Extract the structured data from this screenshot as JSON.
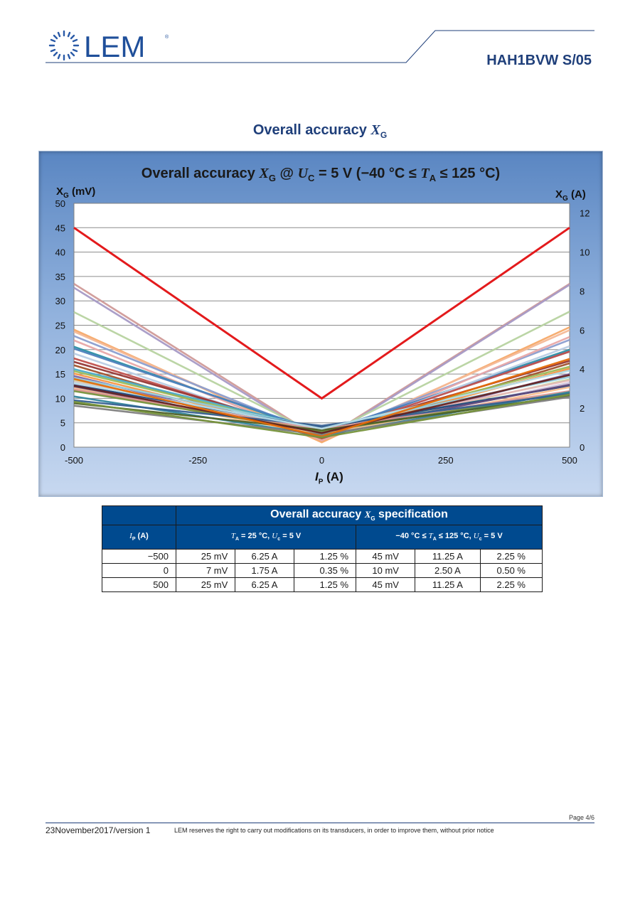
{
  "header": {
    "brand": "LEM",
    "doc_code": "HAH1BVW S/05"
  },
  "section_title": {
    "main": "Overall accuracy ",
    "var": "X",
    "sub": "G"
  },
  "chart_title": {
    "p1": "Overall accuracy ",
    "v1": "X",
    "s1": "G",
    "p2": " @ ",
    "v2": "U",
    "s2": "C",
    "p3": " = 5 V (−40 °C ≤ ",
    "v3": "T",
    "s3": "A",
    "p4": " ≤ 125 °C)"
  },
  "axes": {
    "y_left_label": {
      "main": "X",
      "sub": "G",
      "rest": " (mV)"
    },
    "y_right_label": {
      "main": "X",
      "sub": "G",
      "rest": " (A)"
    },
    "x_label": {
      "main": "I",
      "sub": "P",
      "rest": " (A)"
    }
  },
  "chart_data": {
    "type": "line",
    "xlabel": "IP (A)",
    "ylabel": "XG (mV)",
    "y2label": "XG (A)",
    "xlim": [
      -500,
      500
    ],
    "ylim": [
      0,
      50
    ],
    "y2lim": [
      0,
      12.5
    ],
    "x_ticks": [
      -500,
      -250,
      0,
      250,
      500
    ],
    "y_ticks": [
      0,
      5,
      10,
      15,
      20,
      25,
      30,
      35,
      40,
      45,
      50
    ],
    "y2_ticks": [
      0,
      2,
      4,
      6,
      8,
      10,
      12
    ],
    "grid": true,
    "x": [
      -500,
      0,
      500
    ],
    "limit_series": {
      "values": [
        45,
        10,
        45
      ],
      "color": "#e31a1c"
    },
    "sample_series": [
      {
        "values": [
          33.5,
          1.5,
          33.5
        ],
        "color": "#d09a98"
      },
      {
        "values": [
          32.7,
          1.2,
          33.3
        ],
        "color": "#a79ac6"
      },
      {
        "values": [
          27.7,
          2.2,
          27.8
        ],
        "color": "#b7d3a0"
      },
      {
        "values": [
          24.1,
          1.0,
          24.6
        ],
        "color": "#f5a968"
      },
      {
        "values": [
          23.7,
          1.6,
          24.0
        ],
        "color": "#f4b896"
      },
      {
        "values": [
          22.8,
          2.4,
          22.0
        ],
        "color": "#8b9ed0"
      },
      {
        "values": [
          21.9,
          1.4,
          22.6
        ],
        "color": "#e8a8a8"
      },
      {
        "values": [
          20.6,
          2.8,
          20.0
        ],
        "color": "#2b8ea5"
      },
      {
        "values": [
          20.2,
          3.1,
          19.6
        ],
        "color": "#4f81bd"
      },
      {
        "values": [
          19.2,
          2.0,
          20.7
        ],
        "color": "#b9cde5"
      },
      {
        "values": [
          18.2,
          2.5,
          19.6
        ],
        "color": "#c0504d"
      },
      {
        "values": [
          17.5,
          2.9,
          17.7
        ],
        "color": "#953735"
      },
      {
        "values": [
          16.8,
          1.8,
          17.2
        ],
        "color": "#a0522d"
      },
      {
        "values": [
          16.0,
          3.6,
          15.8
        ],
        "color": "#4bacc6"
      },
      {
        "values": [
          15.6,
          3.3,
          16.5
        ],
        "color": "#9bbb59"
      },
      {
        "values": [
          15.1,
          2.6,
          16.1
        ],
        "color": "#f79646"
      },
      {
        "values": [
          14.6,
          2.1,
          15.0
        ],
        "color": "#8064a2"
      },
      {
        "values": [
          14.2,
          3.9,
          14.4
        ],
        "color": "#93cddd"
      },
      {
        "values": [
          13.8,
          2.7,
          13.9
        ],
        "color": "#c3d69b"
      },
      {
        "values": [
          13.4,
          3.4,
          13.7
        ],
        "color": "#e6b9b8"
      },
      {
        "values": [
          13.0,
          2.3,
          13.2
        ],
        "color": "#ccc1da"
      },
      {
        "values": [
          12.7,
          4.0,
          12.6
        ],
        "color": "#1f497d"
      },
      {
        "values": [
          12.4,
          3.0,
          12.8
        ],
        "color": "#604a7b"
      },
      {
        "values": [
          12.1,
          2.5,
          12.3
        ],
        "color": "#fac090"
      },
      {
        "values": [
          11.8,
          3.7,
          11.5
        ],
        "color": "#d99694"
      },
      {
        "values": [
          11.5,
          3.2,
          11.2
        ],
        "color": "#76923c"
      },
      {
        "values": [
          10.4,
          2.4,
          11.3
        ],
        "color": "#31859c"
      },
      {
        "values": [
          9.6,
          4.4,
          10.9
        ],
        "color": "#366092"
      },
      {
        "values": [
          9.0,
          3.5,
          10.5
        ],
        "color": "#4f6228"
      },
      {
        "values": [
          8.5,
          2.6,
          10.3
        ],
        "color": "#7f7f7f"
      },
      {
        "values": [
          12.6,
          2.9,
          14.8
        ],
        "color": "#632423"
      },
      {
        "values": [
          13.2,
          3.8,
          15.7
        ],
        "color": "#b7dde8"
      },
      {
        "values": [
          14.0,
          2.2,
          18.1
        ],
        "color": "#e46c0a"
      },
      {
        "values": [
          9.3,
          2.0,
          10.8
        ],
        "color": "#77933c"
      }
    ]
  },
  "table": {
    "title": {
      "p1": "Overall accuracy ",
      "v": "X",
      "s": "G",
      "p2": " specification"
    },
    "col_ip": {
      "v": "I",
      "s": "P",
      "rest": " (A)"
    },
    "col_25": {
      "v1": "T",
      "s1": "A",
      "p1": " = 25 °C, ",
      "v2": "U",
      "s2": "c",
      "p2": " = 5 V"
    },
    "col_range": {
      "p0": "−40 °C ≤ ",
      "v1": "T",
      "s1": "A",
      "p1": " ≤ 125 °C, ",
      "v2": "U",
      "s2": "c",
      "p2": " = 5 V"
    },
    "rows": [
      {
        "ip": "−500",
        "mv25": "25 mV",
        "a25": "6.25 A",
        "pct25": "1.25 %",
        "mv": "45 mV",
        "a": "11.25 A",
        "pct": "2.25 %"
      },
      {
        "ip": "0",
        "mv25": "7 mV",
        "a25": "1.75 A",
        "pct25": "0.35 %",
        "mv": "10 mV",
        "a": "2.50 A",
        "pct": "0.50 %"
      },
      {
        "ip": "500",
        "mv25": "25 mV",
        "a25": "6.25 A",
        "pct25": "1.25 %",
        "mv": "45 mV",
        "a": "11.25 A",
        "pct": "2.25 %"
      }
    ]
  },
  "footer": {
    "page": "Page 4/6",
    "date": "23November2017/version 1",
    "note": "LEM reserves the right to carry out modifications on its transducers, in order to improve them, without prior notice"
  }
}
